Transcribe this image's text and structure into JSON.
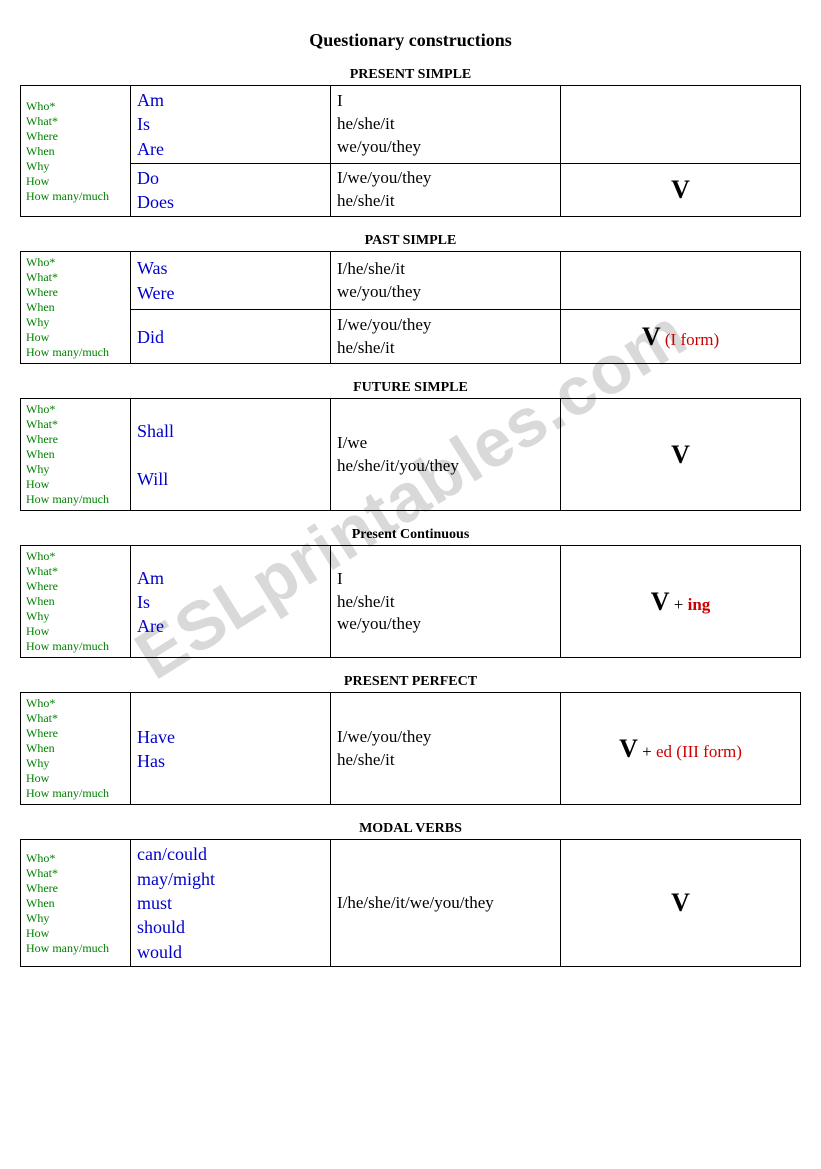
{
  "title": "Questionary constructions",
  "watermark": "ESLprintables.com",
  "qwords_text": "Who*\nWhat*\nWhere\nWhen\nWhy\nHow\nHow many/much",
  "sections": {
    "present_simple": {
      "title": "PRESENT SIMPLE",
      "row1_aux": "Am\nIs\nAre",
      "row1_subj": "I\nhe/she/it\nwe/you/they",
      "row2_aux": "Do\nDoes",
      "row2_subj": "I/we/you/they\nhe/she/it",
      "verb_v": "V"
    },
    "past_simple": {
      "title": "PAST SIMPLE",
      "row1_aux": "Was\nWere",
      "row1_subj": "I/he/she/it\nwe/you/they",
      "row2_aux": "Did",
      "row2_subj": "I/we/you/they\nhe/she/it",
      "verb_v": "V",
      "verb_note": " (I form)"
    },
    "future_simple": {
      "title": "FUTURE SIMPLE",
      "aux": "Shall\n\nWill",
      "subj": "I/we\nhe/she/it/you/they",
      "verb_v": "V"
    },
    "present_continuous": {
      "title": "Present Continuous",
      "aux": "Am\nIs\nAre",
      "subj": "I\nhe/she/it\nwe/you/they",
      "verb_v": "V",
      "verb_plus": " + ",
      "verb_suffix": "ing"
    },
    "present_perfect": {
      "title": "PRESENT PERFECT",
      "aux": "Have\nHas",
      "subj": "I/we/you/they\nhe/she/it",
      "verb_v": "V",
      "verb_plus": " + ",
      "verb_suffix": "ed (III form)"
    },
    "modal_verbs": {
      "title": "MODAL VERBS",
      "aux": "can/could\nmay/might\nmust\nshould\nwould",
      "subj": "I/he/she/it/we/you/they",
      "verb_v": "V"
    }
  }
}
